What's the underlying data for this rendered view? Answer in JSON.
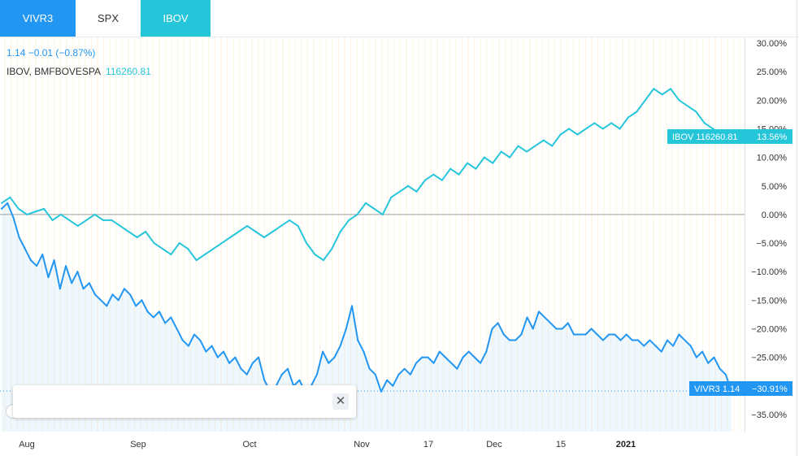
{
  "tabs": [
    {
      "label": "VIVR3"
    },
    {
      "label": "SPX"
    },
    {
      "label": "IBOV"
    }
  ],
  "legend": {
    "main": "1.14 −0.01 (−0.87%)",
    "compare_name": "IBOV, BMFBOVESPA",
    "compare_value": "116260.81"
  },
  "badges": {
    "ibov": {
      "label": "IBOV 116260.81",
      "value": "13.56%"
    },
    "vivr3": {
      "label": "VIVR3 1.14",
      "value": "−30.91%"
    }
  },
  "colors": {
    "vivr3": "#2196f3",
    "ibov": "#26c6da"
  },
  "chart_data": {
    "type": "line",
    "y_unit": "percent change",
    "ylim": [
      -38,
      31
    ],
    "y_ticks": [
      "30.00%",
      "25.00%",
      "20.00%",
      "15.00%",
      "10.00%",
      "5.00%",
      "0.00%",
      "−5.00%",
      "−10.00%",
      "−15.00%",
      "−20.00%",
      "−25.00%",
      "−30.00%",
      "−35.00%"
    ],
    "x_ticks": [
      "Aug",
      "Sep",
      "Oct",
      "Nov",
      "17",
      "Dec",
      "15",
      "2021"
    ],
    "grid": "vertical",
    "series": [
      {
        "name": "VIVR3",
        "values": [
          1,
          2,
          -0.5,
          -4,
          -6,
          -8,
          -9,
          -7,
          -11,
          -8,
          -13,
          -9,
          -12,
          -10,
          -13,
          -12,
          -14,
          -15,
          -16,
          -14,
          -15,
          -13,
          -14,
          -16,
          -15,
          -17,
          -18,
          -17,
          -19,
          -18,
          -20,
          -22,
          -23,
          -21,
          -22,
          -24,
          -23,
          -25,
          -24,
          -26,
          -25,
          -27,
          -28,
          -26,
          -25,
          -29,
          -31,
          -30,
          -28,
          -27,
          -30,
          -29,
          -31,
          -30,
          -28,
          -24,
          -26,
          -25,
          -23,
          -20,
          -16,
          -22,
          -24,
          -27,
          -28,
          -31,
          -29,
          -30,
          -28,
          -27,
          -28,
          -26,
          -25,
          -25,
          -26,
          -24,
          -25,
          -26,
          -27,
          -25,
          -24,
          -25,
          -26,
          -24,
          -20,
          -19,
          -21,
          -22,
          -22,
          -21,
          -18,
          -20,
          -17,
          -18,
          -19,
          -20,
          -20,
          -19,
          -21,
          -21,
          -21,
          -20,
          -21,
          -22,
          -21,
          -21,
          -22,
          -21,
          -22,
          -22,
          -23,
          -22,
          -23,
          -24,
          -22,
          -23,
          -21,
          -22,
          -23,
          -25,
          -24,
          -26,
          -25,
          -27,
          -28,
          -30.91
        ],
        "color": "#2196f3"
      },
      {
        "name": "IBOV",
        "values": [
          2,
          3,
          1,
          0,
          0.5,
          1,
          -1,
          0,
          -1,
          -2,
          -1,
          0,
          -1,
          -1,
          -2,
          -3,
          -4,
          -3,
          -5,
          -6,
          -7,
          -5,
          -6,
          -8,
          -7,
          -6,
          -5,
          -4,
          -3,
          -2,
          -3,
          -4,
          -3,
          -2,
          -1,
          -2,
          -5,
          -7,
          -8,
          -6,
          -3,
          -1,
          0,
          2,
          1,
          0,
          3,
          4,
          5,
          4,
          6,
          7,
          6,
          8,
          7,
          9,
          8,
          10,
          9,
          11,
          10,
          12,
          11,
          12,
          13,
          12,
          14,
          15,
          14,
          15,
          16,
          15,
          16,
          15,
          17,
          18,
          20,
          22,
          21,
          22,
          20,
          19,
          18,
          16,
          15,
          14,
          13.56
        ],
        "color": "#26c6da"
      }
    ]
  }
}
